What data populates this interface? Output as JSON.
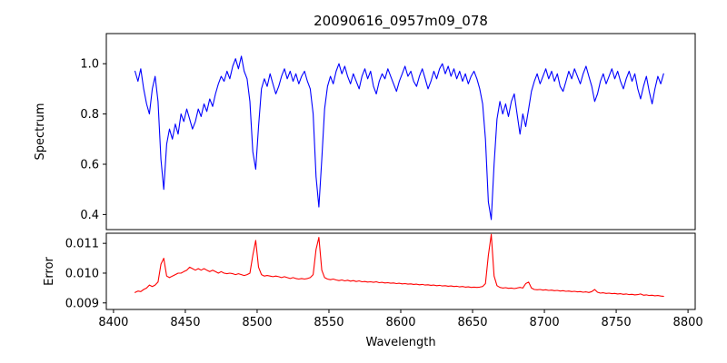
{
  "chart_data": [
    {
      "type": "line",
      "title": "20090616_0957m09_078",
      "ylabel": "Spectrum",
      "series_name": "spectrum",
      "series_color": "#0000ff",
      "x_start": 8415,
      "x_step": 2,
      "xlim": [
        8395,
        8805
      ],
      "ylim": [
        0.34,
        1.12
      ],
      "yticks": [
        0.4,
        0.6,
        0.8,
        1.0
      ],
      "ytick_labels": [
        "0.4",
        "0.6",
        "0.8",
        "1.0"
      ],
      "grid": false,
      "values": [
        0.97,
        0.93,
        0.98,
        0.9,
        0.84,
        0.8,
        0.9,
        0.95,
        0.85,
        0.62,
        0.5,
        0.68,
        0.74,
        0.7,
        0.76,
        0.72,
        0.8,
        0.77,
        0.82,
        0.78,
        0.74,
        0.77,
        0.82,
        0.79,
        0.84,
        0.81,
        0.86,
        0.83,
        0.88,
        0.92,
        0.95,
        0.93,
        0.97,
        0.94,
        0.99,
        1.02,
        0.98,
        1.03,
        0.97,
        0.94,
        0.85,
        0.65,
        0.58,
        0.75,
        0.9,
        0.94,
        0.91,
        0.96,
        0.92,
        0.88,
        0.91,
        0.95,
        0.98,
        0.94,
        0.97,
        0.93,
        0.96,
        0.92,
        0.95,
        0.97,
        0.93,
        0.9,
        0.8,
        0.55,
        0.43,
        0.62,
        0.82,
        0.91,
        0.95,
        0.92,
        0.97,
        1.0,
        0.96,
        0.99,
        0.95,
        0.92,
        0.96,
        0.93,
        0.9,
        0.95,
        0.98,
        0.94,
        0.97,
        0.91,
        0.88,
        0.93,
        0.96,
        0.94,
        0.98,
        0.95,
        0.92,
        0.89,
        0.93,
        0.96,
        0.99,
        0.95,
        0.97,
        0.93,
        0.91,
        0.95,
        0.98,
        0.94,
        0.9,
        0.93,
        0.97,
        0.94,
        0.98,
        1.0,
        0.96,
        0.99,
        0.95,
        0.98,
        0.94,
        0.97,
        0.93,
        0.96,
        0.92,
        0.95,
        0.97,
        0.94,
        0.9,
        0.84,
        0.7,
        0.45,
        0.38,
        0.6,
        0.78,
        0.85,
        0.8,
        0.84,
        0.79,
        0.85,
        0.88,
        0.8,
        0.72,
        0.8,
        0.75,
        0.82,
        0.89,
        0.93,
        0.96,
        0.92,
        0.95,
        0.98,
        0.94,
        0.97,
        0.93,
        0.96,
        0.91,
        0.89,
        0.93,
        0.97,
        0.94,
        0.98,
        0.95,
        0.92,
        0.96,
        0.99,
        0.95,
        0.91,
        0.85,
        0.88,
        0.93,
        0.96,
        0.92,
        0.95,
        0.98,
        0.94,
        0.97,
        0.93,
        0.9,
        0.94,
        0.97,
        0.93,
        0.96,
        0.9,
        0.86,
        0.91,
        0.95,
        0.89,
        0.84,
        0.9,
        0.95,
        0.92,
        0.96
      ]
    },
    {
      "type": "line",
      "ylabel": "Error",
      "xlabel": "Wavelength",
      "series_name": "error",
      "series_color": "#ff0000",
      "x_start": 8415,
      "x_step": 2,
      "xlim": [
        8395,
        8805
      ],
      "ylim": [
        0.00878,
        0.01134
      ],
      "yticks": [
        0.009,
        0.01,
        0.011
      ],
      "ytick_labels": [
        "0.009",
        "0.010",
        "0.011"
      ],
      "xticks": [
        8400,
        8450,
        8500,
        8550,
        8600,
        8650,
        8700,
        8750,
        8800
      ],
      "grid": false,
      "values": [
        0.00935,
        0.0094,
        0.00938,
        0.00945,
        0.0095,
        0.0096,
        0.00955,
        0.0096,
        0.0097,
        0.0103,
        0.0105,
        0.0099,
        0.00985,
        0.0099,
        0.00995,
        0.01,
        0.01,
        0.01005,
        0.0101,
        0.0102,
        0.01015,
        0.0101,
        0.01015,
        0.0101,
        0.01015,
        0.0101,
        0.01005,
        0.0101,
        0.01005,
        0.01,
        0.01005,
        0.01,
        0.00998,
        0.01,
        0.00998,
        0.00995,
        0.00998,
        0.00995,
        0.00992,
        0.00995,
        0.01,
        0.0106,
        0.0111,
        0.0102,
        0.00995,
        0.0099,
        0.00992,
        0.0099,
        0.00988,
        0.0099,
        0.00988,
        0.00985,
        0.00988,
        0.00985,
        0.00982,
        0.00985,
        0.00982,
        0.0098,
        0.00982,
        0.0098,
        0.00982,
        0.00985,
        0.00995,
        0.0108,
        0.0112,
        0.0101,
        0.00985,
        0.0098,
        0.00978,
        0.0098,
        0.00977,
        0.00975,
        0.00977,
        0.00974,
        0.00976,
        0.00973,
        0.00975,
        0.00972,
        0.00974,
        0.00971,
        0.00972,
        0.0097,
        0.00971,
        0.00969,
        0.00971,
        0.00968,
        0.00969,
        0.00967,
        0.00968,
        0.00966,
        0.00967,
        0.00965,
        0.00966,
        0.00964,
        0.00965,
        0.00963,
        0.00964,
        0.00962,
        0.00963,
        0.00961,
        0.00962,
        0.0096,
        0.00961,
        0.00959,
        0.0096,
        0.00958,
        0.00959,
        0.00957,
        0.00958,
        0.00956,
        0.00957,
        0.00955,
        0.00956,
        0.00954,
        0.00955,
        0.00953,
        0.00954,
        0.00952,
        0.00953,
        0.00952,
        0.00953,
        0.00955,
        0.00965,
        0.0106,
        0.0113,
        0.0099,
        0.00958,
        0.00952,
        0.0095,
        0.00951,
        0.00949,
        0.0095,
        0.00948,
        0.0095,
        0.00952,
        0.0095,
        0.00965,
        0.0097,
        0.0095,
        0.00945,
        0.00944,
        0.00945,
        0.00943,
        0.00944,
        0.00942,
        0.00943,
        0.00941,
        0.00942,
        0.0094,
        0.00941,
        0.00939,
        0.0094,
        0.00938,
        0.00939,
        0.00937,
        0.00938,
        0.00936,
        0.00937,
        0.00935,
        0.00938,
        0.00945,
        0.00936,
        0.00933,
        0.00934,
        0.00932,
        0.00933,
        0.00931,
        0.00932,
        0.0093,
        0.00931,
        0.00929,
        0.0093,
        0.00928,
        0.00929,
        0.00927,
        0.00928,
        0.0093,
        0.00926,
        0.00927,
        0.00925,
        0.00926,
        0.00924,
        0.00925,
        0.00923,
        0.00922
      ]
    }
  ]
}
